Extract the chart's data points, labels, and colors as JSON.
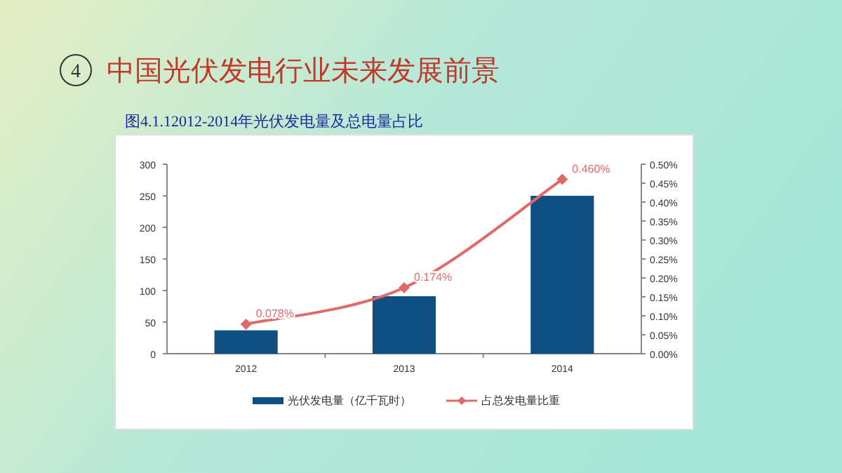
{
  "chart_data": {
    "type": "bar",
    "title": "中国光伏发电行业未来发展前景",
    "subtitle": "图4.1.12012-2014年光伏发电量及总电量占比",
    "annotations": [
      "4"
    ],
    "categories": [
      "2012",
      "2013",
      "2014"
    ],
    "series": [
      {
        "name": "光伏发电量（亿千瓦时）",
        "color": "#0f4f82",
        "values": [
          37,
          91,
          250
        ]
      },
      {
        "name": "占总发电量比重",
        "type": "line",
        "axis": "y2",
        "color": "#e06a6a",
        "values": [
          0.078,
          0.174,
          0.46
        ],
        "value_labels": [
          "0.078%",
          "0.174%",
          "0.460%"
        ],
        "marker": "diamond"
      }
    ],
    "ylim": [
      0,
      300
    ],
    "yticks": [
      0,
      50,
      100,
      150,
      200,
      250,
      300
    ],
    "y2lim": [
      0,
      0.5
    ],
    "y2ticks": [
      {
        "value": 0,
        "label": "0.00%"
      },
      {
        "value": 0.05,
        "label": "0.05%"
      },
      {
        "value": 0.1,
        "label": "0.10%"
      },
      {
        "value": 0.15,
        "label": "0.15%"
      },
      {
        "value": 0.2,
        "label": "0.20%"
      },
      {
        "value": 0.25,
        "label": "0.25%"
      },
      {
        "value": 0.3,
        "label": "0.30%"
      },
      {
        "value": 0.35,
        "label": "0.35%"
      },
      {
        "value": 0.4,
        "label": "0.40%"
      },
      {
        "value": 0.45,
        "label": "0.45%"
      },
      {
        "value": 0.5,
        "label": "0.50%"
      }
    ],
    "grid": false,
    "legend": "bottom"
  }
}
